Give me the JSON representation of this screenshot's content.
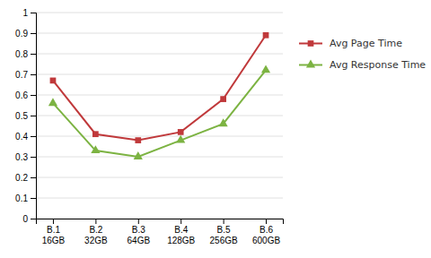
{
  "chart_data": {
    "type": "line",
    "categories": [
      "B.1\n16GB",
      "B.2\n32GB",
      "B.3\n64GB",
      "B.4\n128GB",
      "B.5\n256GB",
      "B.6\n600GB"
    ],
    "series": [
      {
        "name": "Avg Page Time",
        "color": "#C0393B",
        "marker": "square",
        "values": [
          0.67,
          0.41,
          0.38,
          0.42,
          0.58,
          0.89
        ]
      },
      {
        "name": "Avg Response Time",
        "color": "#7CB342",
        "marker": "triangle",
        "values": [
          0.56,
          0.33,
          0.3,
          0.38,
          0.46,
          0.72
        ]
      }
    ],
    "ylim": [
      0,
      1.0
    ],
    "yticks": [
      0,
      0.1,
      0.2,
      0.3,
      0.4,
      0.5,
      0.6,
      0.7,
      0.8,
      0.9,
      1
    ],
    "grid": true,
    "legend": "right"
  }
}
